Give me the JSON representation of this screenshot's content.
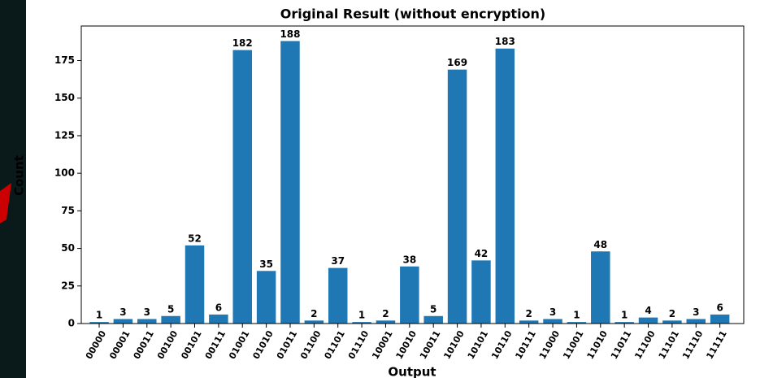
{
  "chart_data": {
    "type": "bar",
    "title": "Original Result (without encryption)",
    "x_label": "Output",
    "y_label": "Count",
    "categories": [
      "00000",
      "00001",
      "00011",
      "00100",
      "00101",
      "00111",
      "01001",
      "01010",
      "01011",
      "01100",
      "01101",
      "01110",
      "10001",
      "10010",
      "10011",
      "10100",
      "10101",
      "10110",
      "10111",
      "11000",
      "11001",
      "11010",
      "11011",
      "11100",
      "11101",
      "11110",
      "11111"
    ],
    "values": [
      1,
      3,
      3,
      5,
      52,
      6,
      182,
      35,
      188,
      2,
      37,
      1,
      2,
      38,
      5,
      169,
      42,
      183,
      2,
      3,
      1,
      48,
      1,
      4,
      2,
      3,
      6
    ],
    "color": "#1f77b4",
    "ylim": [
      0,
      198
    ],
    "yticks": [
      0,
      25,
      50,
      75,
      100,
      125,
      150,
      175
    ],
    "grid": false
  }
}
